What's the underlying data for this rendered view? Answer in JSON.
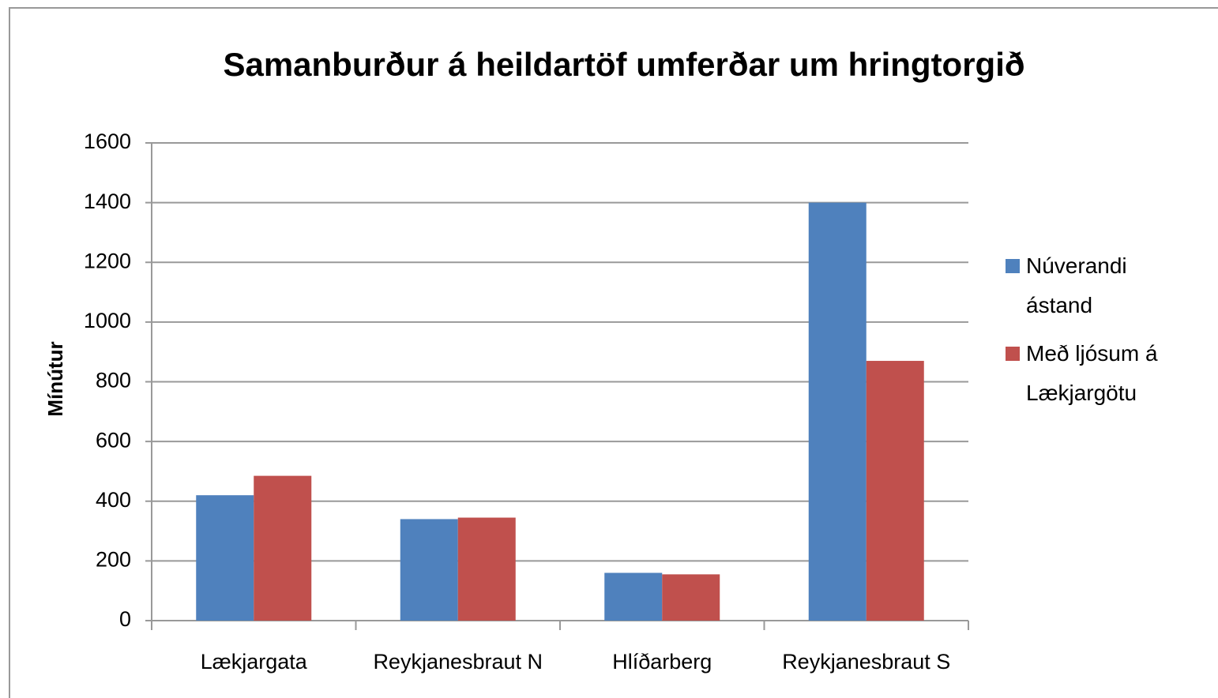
{
  "chart_data": {
    "type": "bar",
    "title": "Samanburður á heildartöf umferðar um hringtorgið",
    "ylabel": "Mínútur",
    "categories": [
      "Lækjargata",
      "Reykjanesbraut N",
      "Hlíðarberg",
      "Reykjanesbraut S"
    ],
    "series": [
      {
        "name": "Núverandi ástand",
        "color": "#4f81bd",
        "values": [
          420,
          340,
          160,
          1400
        ]
      },
      {
        "name": "Með ljósum á Lækjargötu",
        "color": "#c0504d",
        "values": [
          485,
          345,
          155,
          870
        ]
      }
    ],
    "ylim": [
      0,
      1600
    ],
    "yticks": [
      0,
      200,
      400,
      600,
      800,
      1000,
      1200,
      1400,
      1600
    ],
    "grid": true,
    "legend": "right"
  }
}
